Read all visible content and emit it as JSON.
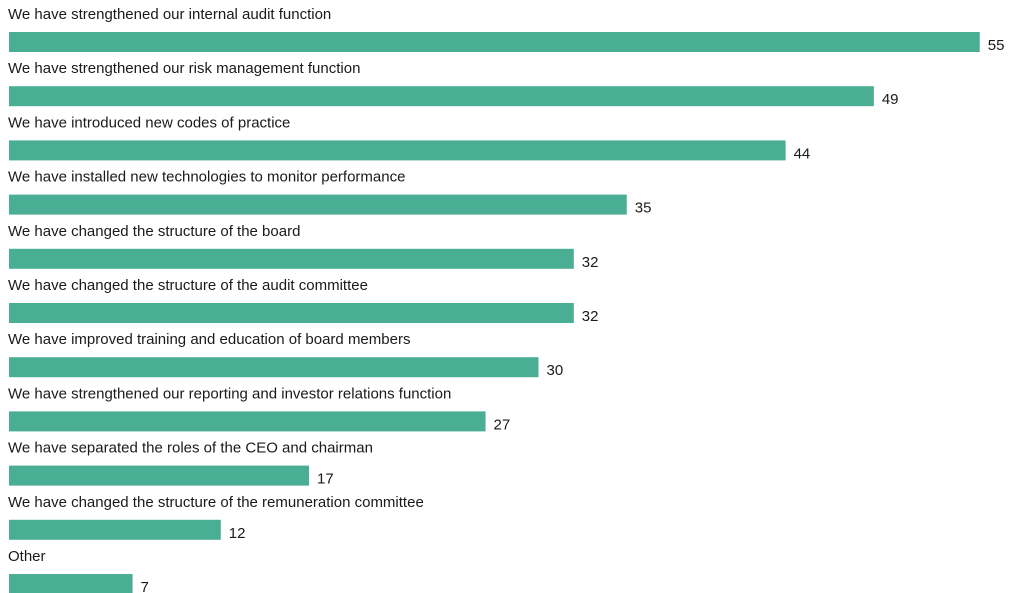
{
  "chart_data": {
    "type": "bar",
    "orientation": "horizontal",
    "color": "#4aae95",
    "categories": [
      "We have strengthened our internal audit function",
      "We have strengthened our risk management function",
      "We have introduced new codes of practice",
      "We have installed new technologies to monitor performance",
      "We have changed the structure of the board",
      "We have changed the structure of the audit committee",
      "We have improved training and education of board members",
      "We have strengthened our reporting and investor relations function",
      "We have separated the roles of the CEO and chairman",
      "We have changed the structure of the remuneration committee",
      "Other"
    ],
    "values": [
      55,
      49,
      44,
      35,
      32,
      32,
      30,
      27,
      17,
      12,
      7
    ]
  }
}
